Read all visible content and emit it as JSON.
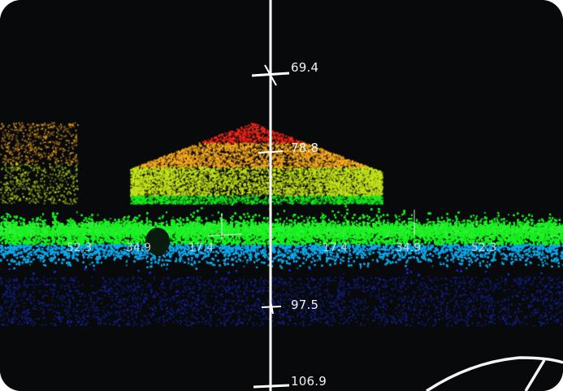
{
  "depth_scale": {
    "ticks": [
      "69.4",
      "78.8",
      "97.5",
      "106.9"
    ]
  },
  "range_scale": {
    "left": [
      "52.3",
      "34.9",
      "17.4"
    ],
    "right": [
      "17.4",
      "34.9",
      "52.3"
    ]
  },
  "colors": {
    "background": "#07090b",
    "axis": "#ffffff",
    "return_high": "#ff2a1a",
    "return_mid_high": "#ffb020",
    "return_mid": "#c8e81c",
    "return_band": "#18f020",
    "return_low": "#10a8e8",
    "return_lowest": "#1c2ed0",
    "label_text": "#f2f2f2"
  },
  "icons": [
    "depth-axis-line",
    "depth-tick-mark",
    "range-grid-line",
    "compass-arc-icon"
  ]
}
